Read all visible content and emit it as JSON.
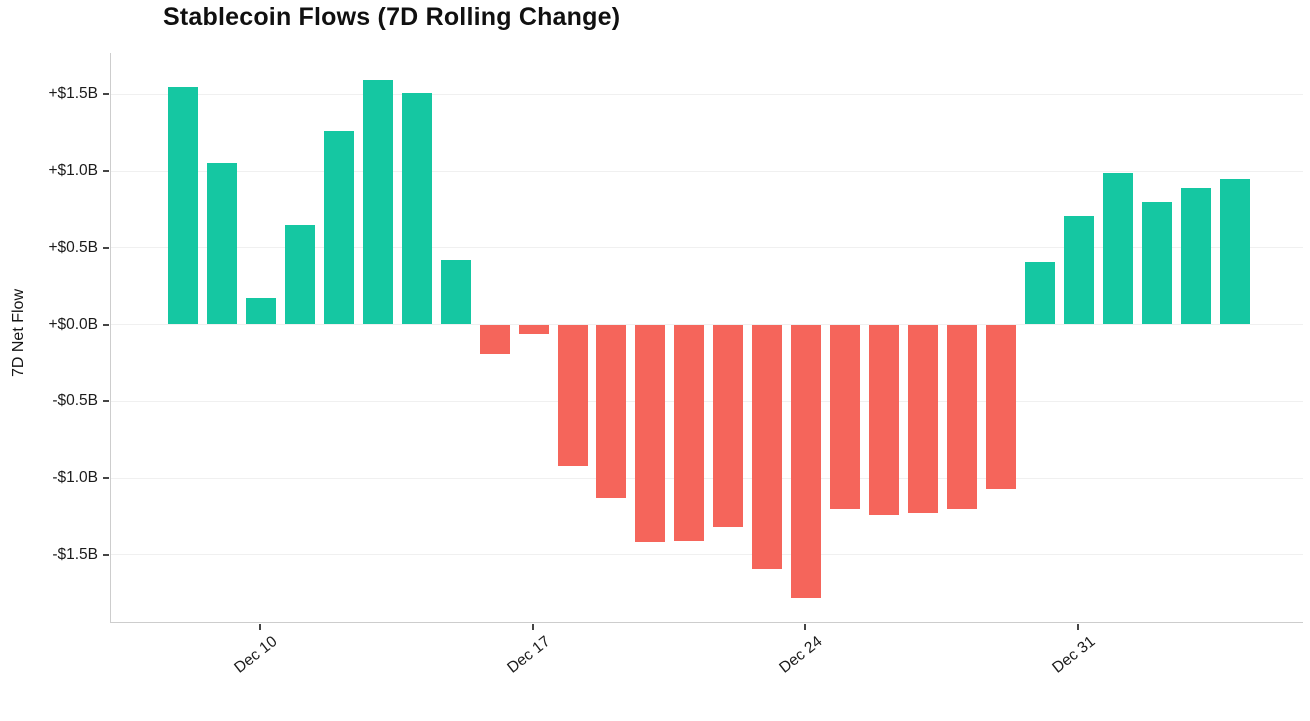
{
  "title": "Stablecoin Flows (7D Rolling Change)",
  "colors": {
    "positive": "#15c7a2",
    "negative": "#f5655b",
    "axis_line": "#cdcdcd",
    "gridline": "#f0f0f0",
    "tick_text": "#1c1c1c",
    "background": "#ffffff"
  },
  "chart_data": {
    "type": "bar",
    "title": "Stablecoin Flows (7D Rolling Change)",
    "xlabel": "",
    "ylabel": "7D Net Flow",
    "grid": true,
    "legend": false,
    "ylim": [
      -1.94,
      1.77
    ],
    "unit": "billion USD (7D net flow)",
    "x": [
      "Dec 8",
      "Dec 9",
      "Dec 10",
      "Dec 11",
      "Dec 12",
      "Dec 13",
      "Dec 14",
      "Dec 15",
      "Dec 16",
      "Dec 17",
      "Dec 18",
      "Dec 19",
      "Dec 20",
      "Dec 21",
      "Dec 22",
      "Dec 23",
      "Dec 24",
      "Dec 25",
      "Dec 26",
      "Dec 27",
      "Dec 28",
      "Dec 29",
      "Dec 30",
      "Dec 31",
      "Jan 1",
      "Jan 2",
      "Jan 3",
      "Jan 4"
    ],
    "values": [
      1.55,
      1.05,
      0.17,
      0.65,
      1.26,
      1.59,
      1.51,
      0.42,
      -0.19,
      -0.06,
      -0.92,
      -1.13,
      -1.42,
      -1.41,
      -1.32,
      -1.59,
      -1.78,
      -1.2,
      -1.24,
      -1.23,
      -1.2,
      -1.07,
      0.41,
      0.71,
      0.99,
      0.8,
      0.89,
      0.95
    ],
    "positive_color": "#15c7a2",
    "negative_color": "#f5655b",
    "yticks": [
      {
        "value": 1.5,
        "label": "+$1.5B"
      },
      {
        "value": 1.0,
        "label": "+$1.0B"
      },
      {
        "value": 0.5,
        "label": "+$0.5B"
      },
      {
        "value": 0.0,
        "label": "+$0.0B"
      },
      {
        "value": -0.5,
        "label": "-$0.5B"
      },
      {
        "value": -1.0,
        "label": "-$1.0B"
      },
      {
        "value": -1.5,
        "label": "-$1.5B"
      }
    ],
    "xticks": [
      {
        "index": 2,
        "label": "Dec 10"
      },
      {
        "index": 9,
        "label": "Dec 17"
      },
      {
        "index": 16,
        "label": "Dec 24"
      },
      {
        "index": 23,
        "label": "Dec 31"
      }
    ]
  }
}
